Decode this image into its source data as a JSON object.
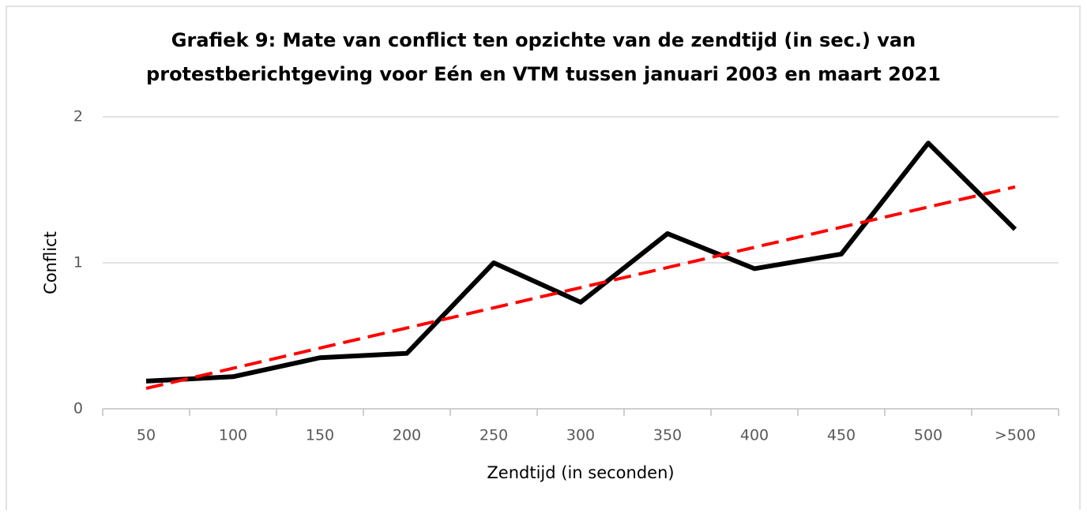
{
  "chart_data": {
    "type": "line",
    "title": [
      "Grafiek 9: Mate van conflict ten opzichte van de zendtijd (in sec.) van",
      "protestberichtgeving voor Eén en VTM tussen januari 2003 en maart 2021"
    ],
    "x_label": "Zendtijd (in seconden)",
    "y_label": "Conflict",
    "categories": [
      "50",
      "100",
      "150",
      "200",
      "250",
      "300",
      "350",
      "400",
      "450",
      "500",
      ">500"
    ],
    "series": [
      {
        "color": "#000000",
        "values": [
          0.19,
          0.22,
          0.35,
          0.38,
          1.0,
          0.73,
          1.2,
          0.96,
          1.06,
          1.82,
          1.23
        ]
      }
    ],
    "trendline": {
      "color": "#ff0000",
      "values": [
        0.14,
        1.52
      ]
    },
    "ylim": [
      0,
      2
    ],
    "yticks": [
      0,
      1,
      2
    ],
    "grid": true
  }
}
